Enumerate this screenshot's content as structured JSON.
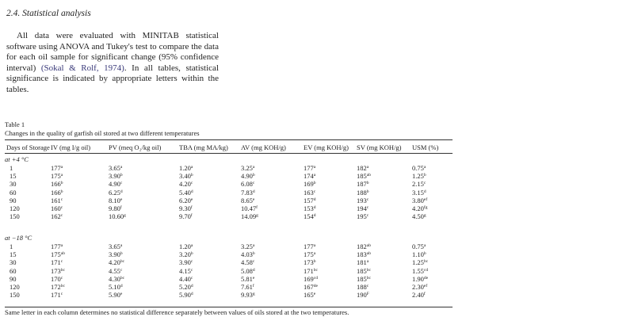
{
  "section": {
    "heading": "2.4. Statistical analysis",
    "text_before": "All data were evaluated with MINITAB statistical software using ANOVA and Tukey's test to compare the data for each oil sample for significant change (95% confidence interval) ",
    "citation": "(Sokal & Rolf, 1974)",
    "text_after": ". In all tables, statistical significance is indicated by appropriate letters within the tables."
  },
  "table": {
    "label": "Table 1",
    "caption": "Changes in the quality of garfish oil stored at two different temperatures",
    "headers": [
      "Days of Storage",
      "IV (mg I/g oil)",
      "PV (meq O₂/kg oil)",
      "TBA (mg MA/kg)",
      "AV (mg KOH/g)",
      "EV (mg KOH/g)",
      "SV (mg KOH/g)",
      "USM (%)"
    ],
    "groups": [
      {
        "label": "at +4 °C",
        "rows": [
          [
            [
              "1",
              ""
            ],
            [
              "177",
              "a"
            ],
            [
              "3.65",
              "a"
            ],
            [
              "1.20",
              "a"
            ],
            [
              "3.25",
              "a"
            ],
            [
              "177",
              "a"
            ],
            [
              "182",
              "a"
            ],
            [
              "0.75",
              "a"
            ]
          ],
          [
            [
              "15",
              ""
            ],
            [
              "175",
              "a"
            ],
            [
              "3.90",
              "b"
            ],
            [
              "3.40",
              "b"
            ],
            [
              "4.90",
              "b"
            ],
            [
              "174",
              "a"
            ],
            [
              "185",
              "ab"
            ],
            [
              "1.25",
              "b"
            ]
          ],
          [
            [
              "30",
              ""
            ],
            [
              "166",
              "b"
            ],
            [
              "4.90",
              "c"
            ],
            [
              "4.20",
              "c"
            ],
            [
              "6.08",
              "c"
            ],
            [
              "169",
              "b"
            ],
            [
              "187",
              "b"
            ],
            [
              "2.15",
              "c"
            ]
          ],
          [
            [
              "60",
              ""
            ],
            [
              "166",
              "b"
            ],
            [
              "6.25",
              "d"
            ],
            [
              "5.40",
              "d"
            ],
            [
              "7.83",
              "d"
            ],
            [
              "163",
              "c"
            ],
            [
              "188",
              "b"
            ],
            [
              "3.15",
              "d"
            ]
          ],
          [
            [
              "90",
              ""
            ],
            [
              "161",
              "c"
            ],
            [
              "8.10",
              "e"
            ],
            [
              "6.20",
              "e"
            ],
            [
              "8.65",
              "e"
            ],
            [
              "157",
              "d"
            ],
            [
              "193",
              "c"
            ],
            [
              "3.80",
              "ef"
            ]
          ],
          [
            [
              "120",
              ""
            ],
            [
              "160",
              "c"
            ],
            [
              "9.80",
              "f"
            ],
            [
              "9.30",
              "f"
            ],
            [
              "10.47",
              "f"
            ],
            [
              "153",
              "d"
            ],
            [
              "194",
              "c"
            ],
            [
              "4.20",
              "fg"
            ]
          ],
          [
            [
              "150",
              ""
            ],
            [
              "162",
              "c"
            ],
            [
              "10.60",
              "g"
            ],
            [
              "9.70",
              "f"
            ],
            [
              "14.09",
              "g"
            ],
            [
              "154",
              "d"
            ],
            [
              "195",
              "c"
            ],
            [
              "4.50",
              "g"
            ]
          ]
        ]
      },
      {
        "label": "at −18 °C",
        "rows": [
          [
            [
              "1",
              ""
            ],
            [
              "177",
              "a"
            ],
            [
              "3.65",
              "a"
            ],
            [
              "1.20",
              "a"
            ],
            [
              "3.25",
              "a"
            ],
            [
              "177",
              "a"
            ],
            [
              "182",
              "ab"
            ],
            [
              "0.75",
              "a"
            ]
          ],
          [
            [
              "15",
              ""
            ],
            [
              "175",
              "ab"
            ],
            [
              "3.90",
              "b"
            ],
            [
              "3.20",
              "b"
            ],
            [
              "4.03",
              "b"
            ],
            [
              "175",
              "a"
            ],
            [
              "183",
              "ab"
            ],
            [
              "1.10",
              "b"
            ]
          ],
          [
            [
              "30",
              ""
            ],
            [
              "171",
              "c"
            ],
            [
              "4.20",
              "bc"
            ],
            [
              "3.90",
              "c"
            ],
            [
              "4.58",
              "c"
            ],
            [
              "173",
              "b"
            ],
            [
              "181",
              "a"
            ],
            [
              "1.25",
              "bc"
            ]
          ],
          [
            [
              "60",
              ""
            ],
            [
              "173",
              "bc"
            ],
            [
              "4.55",
              "c"
            ],
            [
              "4.15",
              "c"
            ],
            [
              "5.08",
              "d"
            ],
            [
              "171",
              "bc"
            ],
            [
              "185",
              "bc"
            ],
            [
              "1.55",
              "cd"
            ]
          ],
          [
            [
              "90",
              ""
            ],
            [
              "170",
              "c"
            ],
            [
              "4.30",
              "bc"
            ],
            [
              "4.40",
              "c"
            ],
            [
              "5.81",
              "e"
            ],
            [
              "169",
              "cd"
            ],
            [
              "185",
              "bc"
            ],
            [
              "1.90",
              "de"
            ]
          ],
          [
            [
              "120",
              ""
            ],
            [
              "172",
              "bc"
            ],
            [
              "5.10",
              "d"
            ],
            [
              "5.20",
              "d"
            ],
            [
              "7.61",
              "f"
            ],
            [
              "167",
              "de"
            ],
            [
              "188",
              "c"
            ],
            [
              "2.30",
              "ef"
            ]
          ],
          [
            [
              "150",
              ""
            ],
            [
              "171",
              "c"
            ],
            [
              "5.90",
              "e"
            ],
            [
              "5.90",
              "d"
            ],
            [
              "9.93",
              "g"
            ],
            [
              "165",
              "e"
            ],
            [
              "190",
              "F"
            ],
            [
              "2.40",
              "f"
            ]
          ]
        ]
      }
    ],
    "footnote": "Same letter in each column determines no statistical difference separately between values of oils stored at the two temperatures."
  }
}
